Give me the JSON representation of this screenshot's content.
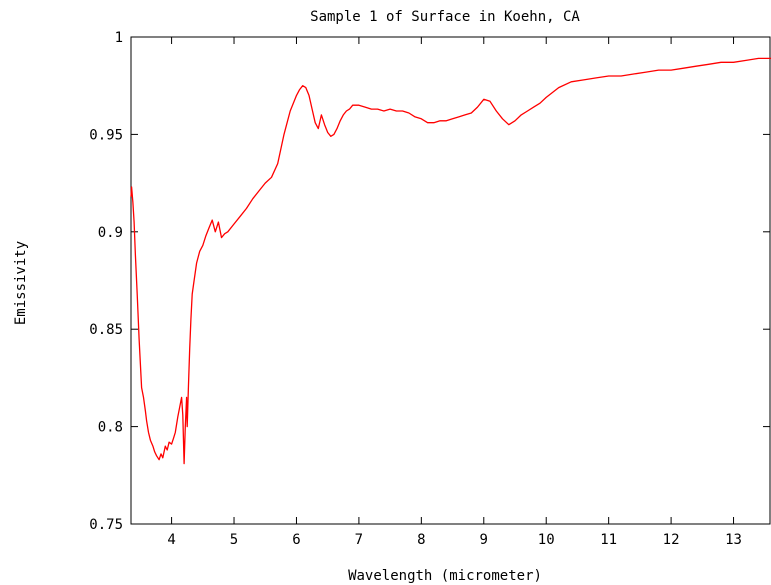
{
  "chart_data": {
    "type": "line",
    "title": "Sample 1 of Surface in Koehn, CA",
    "xlabel": "Wavelength (micrometer)",
    "ylabel": "Emissivity",
    "xlim": [
      3.35,
      13.6
    ],
    "ylim": [
      0.75,
      1.0
    ],
    "x_ticks": [
      4,
      5,
      6,
      7,
      8,
      9,
      10,
      11,
      12,
      13
    ],
    "x_tick_labels": [
      "4",
      "5",
      "6",
      "7",
      "8",
      "9",
      "10",
      "11",
      "12",
      "13"
    ],
    "y_ticks": [
      0.75,
      0.8,
      0.85,
      0.9,
      0.95,
      1.0
    ],
    "y_tick_labels": [
      "0.75",
      "0.8",
      "0.85",
      "0.9",
      "0.95",
      "1"
    ],
    "grid": false,
    "series": [
      {
        "color": "#ff0000",
        "x": [
          3.35,
          3.36,
          3.38,
          3.4,
          3.42,
          3.45,
          3.48,
          3.5,
          3.52,
          3.55,
          3.58,
          3.6,
          3.63,
          3.66,
          3.7,
          3.73,
          3.76,
          3.8,
          3.83,
          3.86,
          3.9,
          3.93,
          3.96,
          4.0,
          4.03,
          4.06,
          4.1,
          4.13,
          4.16,
          4.18,
          4.2,
          4.22,
          4.24,
          4.25,
          4.27,
          4.29,
          4.31,
          4.33,
          4.36,
          4.4,
          4.45,
          4.5,
          4.55,
          4.6,
          4.65,
          4.7,
          4.75,
          4.8,
          4.85,
          4.9,
          5.0,
          5.1,
          5.2,
          5.3,
          5.4,
          5.5,
          5.6,
          5.7,
          5.8,
          5.9,
          6.0,
          6.05,
          6.1,
          6.15,
          6.2,
          6.25,
          6.3,
          6.35,
          6.4,
          6.45,
          6.5,
          6.55,
          6.6,
          6.65,
          6.7,
          6.75,
          6.8,
          6.85,
          6.9,
          7.0,
          7.1,
          7.2,
          7.3,
          7.4,
          7.5,
          7.6,
          7.7,
          7.8,
          7.9,
          8.0,
          8.1,
          8.2,
          8.3,
          8.4,
          8.5,
          8.6,
          8.7,
          8.8,
          8.9,
          9.0,
          9.1,
          9.2,
          9.3,
          9.4,
          9.5,
          9.6,
          9.7,
          9.8,
          9.9,
          10.0,
          10.2,
          10.4,
          10.6,
          10.8,
          11.0,
          11.2,
          11.4,
          11.6,
          11.8,
          12.0,
          12.2,
          12.4,
          12.6,
          12.8,
          13.0,
          13.2,
          13.4,
          13.6
        ],
        "values": [
          0.918,
          0.923,
          0.915,
          0.905,
          0.888,
          0.868,
          0.845,
          0.832,
          0.82,
          0.815,
          0.808,
          0.803,
          0.797,
          0.793,
          0.79,
          0.787,
          0.785,
          0.783,
          0.786,
          0.784,
          0.79,
          0.788,
          0.792,
          0.791,
          0.794,
          0.797,
          0.805,
          0.81,
          0.815,
          0.806,
          0.781,
          0.8,
          0.815,
          0.8,
          0.82,
          0.84,
          0.855,
          0.868,
          0.875,
          0.884,
          0.89,
          0.893,
          0.898,
          0.902,
          0.906,
          0.9,
          0.905,
          0.897,
          0.899,
          0.9,
          0.904,
          0.908,
          0.912,
          0.917,
          0.921,
          0.925,
          0.928,
          0.935,
          0.95,
          0.962,
          0.97,
          0.973,
          0.975,
          0.974,
          0.97,
          0.963,
          0.956,
          0.953,
          0.96,
          0.955,
          0.951,
          0.949,
          0.95,
          0.953,
          0.957,
          0.96,
          0.962,
          0.963,
          0.965,
          0.965,
          0.964,
          0.963,
          0.963,
          0.962,
          0.963,
          0.962,
          0.962,
          0.961,
          0.959,
          0.958,
          0.956,
          0.956,
          0.957,
          0.957,
          0.958,
          0.959,
          0.96,
          0.961,
          0.964,
          0.968,
          0.967,
          0.962,
          0.958,
          0.955,
          0.957,
          0.96,
          0.962,
          0.964,
          0.966,
          0.969,
          0.974,
          0.977,
          0.978,
          0.979,
          0.98,
          0.98,
          0.981,
          0.982,
          0.983,
          0.983,
          0.984,
          0.985,
          0.986,
          0.987,
          0.987,
          0.988,
          0.989,
          0.989
        ]
      }
    ]
  }
}
